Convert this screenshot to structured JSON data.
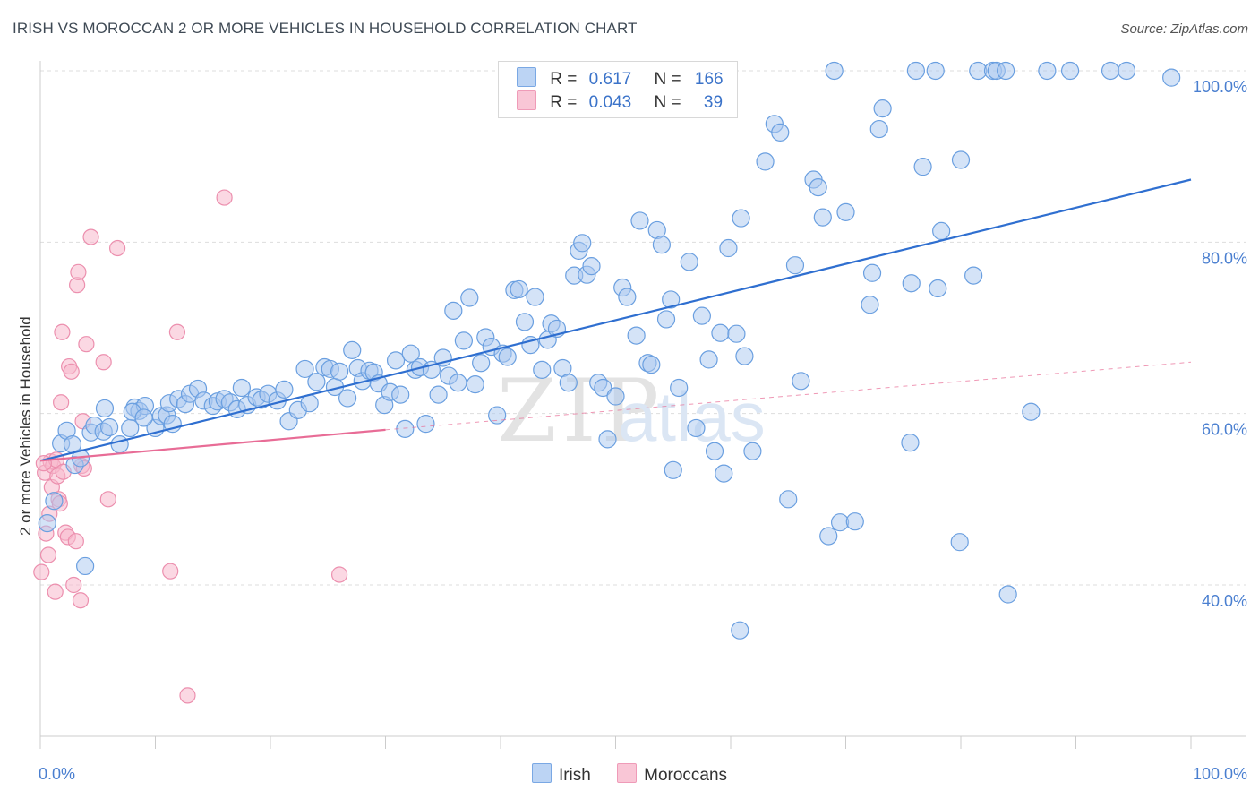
{
  "header": {
    "title": "IRISH VS MOROCCAN 2 OR MORE VEHICLES IN HOUSEHOLD CORRELATION CHART",
    "source": "Source: ZipAtlas.com"
  },
  "legend": {
    "rows": [
      {
        "r_label": "R =",
        "r_value": "0.617",
        "n_label": "N =",
        "n_value": "166"
      },
      {
        "r_label": "R =",
        "r_value": "0.043",
        "n_label": "N =",
        "n_value": "39"
      }
    ]
  },
  "bottom_legend": [
    "Irish",
    "Moroccans"
  ],
  "watermark": {
    "zip": "ZIP",
    "atlas": "atlas"
  },
  "colors": {
    "irish_fill": "#a9c8f0",
    "irish_stroke": "#6a9fe0",
    "irish_line": "#2f6fd0",
    "moroccan_fill": "#f8b8cc",
    "moroccan_stroke": "#ec8fae",
    "moroccan_line": "#e86c96",
    "tick_text": "#4a7fd0",
    "grid": "#dddddd"
  },
  "chart_data": {
    "type": "scatter",
    "title": "IRISH VS MOROCCAN 2 OR MORE VEHICLES IN HOUSEHOLD CORRELATION CHART",
    "xlabel": "",
    "ylabel": "2 or more Vehicles in Household",
    "xlim": [
      0,
      100
    ],
    "ylim": [
      20,
      103
    ],
    "x_tick_labels": [
      "0.0%",
      "100.0%"
    ],
    "y_ticks": [
      40,
      60,
      80,
      100
    ],
    "y_tick_labels": [
      "40.0%",
      "60.0%",
      "80.0%",
      "100.0%"
    ],
    "grid": true,
    "legend_position": "top-center",
    "series": [
      {
        "name": "Irish",
        "r": 0.617,
        "n": 166,
        "trend": {
          "x": [
            0,
            100
          ],
          "y": [
            54.5,
            87.3
          ],
          "style": "solid"
        },
        "points": [
          [
            0.6,
            47.2
          ],
          [
            1.2,
            49.8
          ],
          [
            1.8,
            56.5
          ],
          [
            2.3,
            58.0
          ],
          [
            2.8,
            56.4
          ],
          [
            3.0,
            54.0
          ],
          [
            4.4,
            57.8
          ],
          [
            4.7,
            58.6
          ],
          [
            5.6,
            60.6
          ],
          [
            5.5,
            57.9
          ],
          [
            6.9,
            56.4
          ],
          [
            7.8,
            58.3
          ],
          [
            8.2,
            60.7
          ],
          [
            8.6,
            60.3
          ],
          [
            9.1,
            60.9
          ],
          [
            10.0,
            58.3
          ],
          [
            10.5,
            59.7
          ],
          [
            11.0,
            59.8
          ],
          [
            11.2,
            61.2
          ],
          [
            11.5,
            58.8
          ],
          [
            12.0,
            61.7
          ],
          [
            12.6,
            61.1
          ],
          [
            13.0,
            62.3
          ],
          [
            13.7,
            62.9
          ],
          [
            14.2,
            61.5
          ],
          [
            15.0,
            60.9
          ],
          [
            15.4,
            61.4
          ],
          [
            16.0,
            61.7
          ],
          [
            16.5,
            61.3
          ],
          [
            17.1,
            60.5
          ],
          [
            17.5,
            63.0
          ],
          [
            18.0,
            61.0
          ],
          [
            18.8,
            61.9
          ],
          [
            19.2,
            61.6
          ],
          [
            19.8,
            62.3
          ],
          [
            20.6,
            61.5
          ],
          [
            21.2,
            62.8
          ],
          [
            21.6,
            59.1
          ],
          [
            22.4,
            60.4
          ],
          [
            23.0,
            65.2
          ],
          [
            23.4,
            61.2
          ],
          [
            24.0,
            63.7
          ],
          [
            24.7,
            65.4
          ],
          [
            25.2,
            65.2
          ],
          [
            25.6,
            63.1
          ],
          [
            26.0,
            64.9
          ],
          [
            26.7,
            61.8
          ],
          [
            27.1,
            67.4
          ],
          [
            27.6,
            65.3
          ],
          [
            28.0,
            63.8
          ],
          [
            28.6,
            65.0
          ],
          [
            29.0,
            64.8
          ],
          [
            29.4,
            63.5
          ],
          [
            29.9,
            61.0
          ],
          [
            30.4,
            62.5
          ],
          [
            30.9,
            66.2
          ],
          [
            31.3,
            62.2
          ],
          [
            31.7,
            58.2
          ],
          [
            32.2,
            67.0
          ],
          [
            32.6,
            65.1
          ],
          [
            33.0,
            65.4
          ],
          [
            33.5,
            58.8
          ],
          [
            34.0,
            65.1
          ],
          [
            34.6,
            62.2
          ],
          [
            35.0,
            66.5
          ],
          [
            35.5,
            64.4
          ],
          [
            35.9,
            72.0
          ],
          [
            36.3,
            63.6
          ],
          [
            36.8,
            68.5
          ],
          [
            37.3,
            73.5
          ],
          [
            37.8,
            63.4
          ],
          [
            38.3,
            65.9
          ],
          [
            38.7,
            68.9
          ],
          [
            39.2,
            67.8
          ],
          [
            39.7,
            59.8
          ],
          [
            40.2,
            67.0
          ],
          [
            40.6,
            66.6
          ],
          [
            41.2,
            74.4
          ],
          [
            41.6,
            74.5
          ],
          [
            42.1,
            70.7
          ],
          [
            42.6,
            68.0
          ],
          [
            43.0,
            73.6
          ],
          [
            43.6,
            65.1
          ],
          [
            44.1,
            68.6
          ],
          [
            44.4,
            70.5
          ],
          [
            44.9,
            69.9
          ],
          [
            45.4,
            65.3
          ],
          [
            45.9,
            63.6
          ],
          [
            46.4,
            76.1
          ],
          [
            46.8,
            79.0
          ],
          [
            47.1,
            79.9
          ],
          [
            47.5,
            76.2
          ],
          [
            47.9,
            77.2
          ],
          [
            48.5,
            63.6
          ],
          [
            48.9,
            63.0
          ],
          [
            49.3,
            57.0
          ],
          [
            50.0,
            62.0
          ],
          [
            50.6,
            74.7
          ],
          [
            51.0,
            73.6
          ],
          [
            51.8,
            69.1
          ],
          [
            52.1,
            82.5
          ],
          [
            52.8,
            65.9
          ],
          [
            53.1,
            65.7
          ],
          [
            53.6,
            81.4
          ],
          [
            54.0,
            79.7
          ],
          [
            54.4,
            71.0
          ],
          [
            54.8,
            73.3
          ],
          [
            55.0,
            53.4
          ],
          [
            55.5,
            63.0
          ],
          [
            56.4,
            77.7
          ],
          [
            57.0,
            58.3
          ],
          [
            57.5,
            71.4
          ],
          [
            58.1,
            66.3
          ],
          [
            58.6,
            55.6
          ],
          [
            59.1,
            69.4
          ],
          [
            59.4,
            53.0
          ],
          [
            59.8,
            79.3
          ],
          [
            60.5,
            69.3
          ],
          [
            60.9,
            82.8
          ],
          [
            61.2,
            66.7
          ],
          [
            61.9,
            55.6
          ],
          [
            63.0,
            89.4
          ],
          [
            63.8,
            93.8
          ],
          [
            64.3,
            92.8
          ],
          [
            65.0,
            50.0
          ],
          [
            65.6,
            77.3
          ],
          [
            66.1,
            63.8
          ],
          [
            67.2,
            87.3
          ],
          [
            67.6,
            86.4
          ],
          [
            68.0,
            82.9
          ],
          [
            68.5,
            45.7
          ],
          [
            69.0,
            100.0
          ],
          [
            69.5,
            47.3
          ],
          [
            70.0,
            83.5
          ],
          [
            70.8,
            47.4
          ],
          [
            72.1,
            72.7
          ],
          [
            72.3,
            76.4
          ],
          [
            72.9,
            93.2
          ],
          [
            73.2,
            95.6
          ],
          [
            75.6,
            56.6
          ],
          [
            75.7,
            75.2
          ],
          [
            76.1,
            100.0
          ],
          [
            76.7,
            88.8
          ],
          [
            77.8,
            100.0
          ],
          [
            78.0,
            74.6
          ],
          [
            78.3,
            81.3
          ],
          [
            79.9,
            45.0
          ],
          [
            80.0,
            89.6
          ],
          [
            81.1,
            76.1
          ],
          [
            81.5,
            100.0
          ],
          [
            82.8,
            100.0
          ],
          [
            83.1,
            100.0
          ],
          [
            84.1,
            38.9
          ],
          [
            87.5,
            100.0
          ],
          [
            89.5,
            100.0
          ],
          [
            93.0,
            100.0
          ],
          [
            94.4,
            100.0
          ],
          [
            98.3,
            99.2
          ],
          [
            83.9,
            100.0
          ],
          [
            8.0,
            60.2
          ],
          [
            9.0,
            59.5
          ],
          [
            6.0,
            58.4
          ],
          [
            3.9,
            42.2
          ],
          [
            60.8,
            34.7
          ],
          [
            86.1,
            60.2
          ],
          [
            3.5,
            54.8
          ]
        ]
      },
      {
        "name": "Moroccans",
        "r": 0.043,
        "n": 39,
        "trend": {
          "x": [
            0,
            30
          ],
          "y": [
            54.5,
            58.1
          ],
          "style": "solid",
          "extended_dashed_to": [
            100,
            66.0
          ]
        },
        "points": [
          [
            0.1,
            41.5
          ],
          [
            0.4,
            53.1
          ],
          [
            0.5,
            46.0
          ],
          [
            0.7,
            43.5
          ],
          [
            0.8,
            48.3
          ],
          [
            0.9,
            54.4
          ],
          [
            1.0,
            51.4
          ],
          [
            1.1,
            53.9
          ],
          [
            1.3,
            39.2
          ],
          [
            1.4,
            54.6
          ],
          [
            1.5,
            52.7
          ],
          [
            1.6,
            50.0
          ],
          [
            1.7,
            49.5
          ],
          [
            1.8,
            61.3
          ],
          [
            1.9,
            69.5
          ],
          [
            2.0,
            53.2
          ],
          [
            2.2,
            46.1
          ],
          [
            2.4,
            45.6
          ],
          [
            2.5,
            65.5
          ],
          [
            2.7,
            64.9
          ],
          [
            2.9,
            40.0
          ],
          [
            3.1,
            45.1
          ],
          [
            3.2,
            75.0
          ],
          [
            3.3,
            76.5
          ],
          [
            3.5,
            38.2
          ],
          [
            3.7,
            59.1
          ],
          [
            4.0,
            68.1
          ],
          [
            4.4,
            80.6
          ],
          [
            5.5,
            66.0
          ],
          [
            5.9,
            50.0
          ],
          [
            6.7,
            79.3
          ],
          [
            11.3,
            41.6
          ],
          [
            11.9,
            69.5
          ],
          [
            12.8,
            27.1
          ],
          [
            16.0,
            85.2
          ],
          [
            26.0,
            41.2
          ],
          [
            3.6,
            53.9
          ],
          [
            3.8,
            53.6
          ],
          [
            0.3,
            54.2
          ]
        ]
      }
    ]
  }
}
